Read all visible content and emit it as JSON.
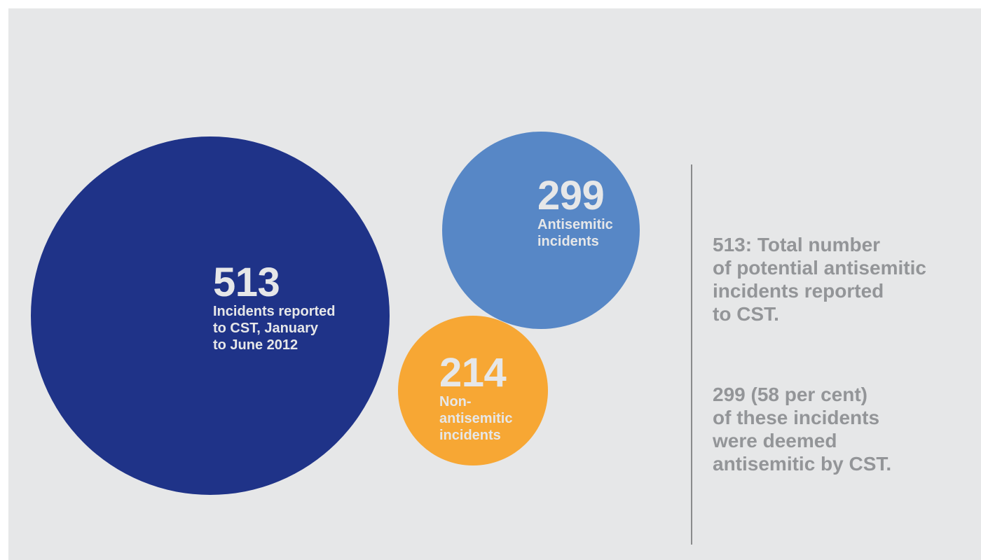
{
  "colors": {
    "background": "#e6e7e8",
    "total": "#1f3388",
    "antisemitic": "#5787c6",
    "non_antisemitic": "#f7a734",
    "bubble_text": "#e6e7e8",
    "summary_text": "#939598",
    "divider": "#8a8b8c"
  },
  "chart_data": {
    "type": "bubble",
    "bubbles": [
      {
        "key": "total",
        "value": 513,
        "value_label": "513",
        "label_lines": [
          "Incidents reported",
          "to CST, January",
          "to June 2012"
        ]
      },
      {
        "key": "antisemitic",
        "value": 299,
        "value_label": "299",
        "label_lines": [
          "Antisemitic",
          "incidents"
        ]
      },
      {
        "key": "non_antisemitic",
        "value": 214,
        "value_label": "214",
        "label_lines": [
          "Non-",
          "antisemitic",
          "incidents"
        ]
      }
    ]
  },
  "summary": {
    "paragraph1": [
      "513: Total number",
      "of potential antisemitic",
      "incidents reported",
      "to CST."
    ],
    "paragraph2": [
      "299 (58 per cent)",
      "of these incidents",
      "were deemed",
      "antisemitic by CST."
    ]
  }
}
